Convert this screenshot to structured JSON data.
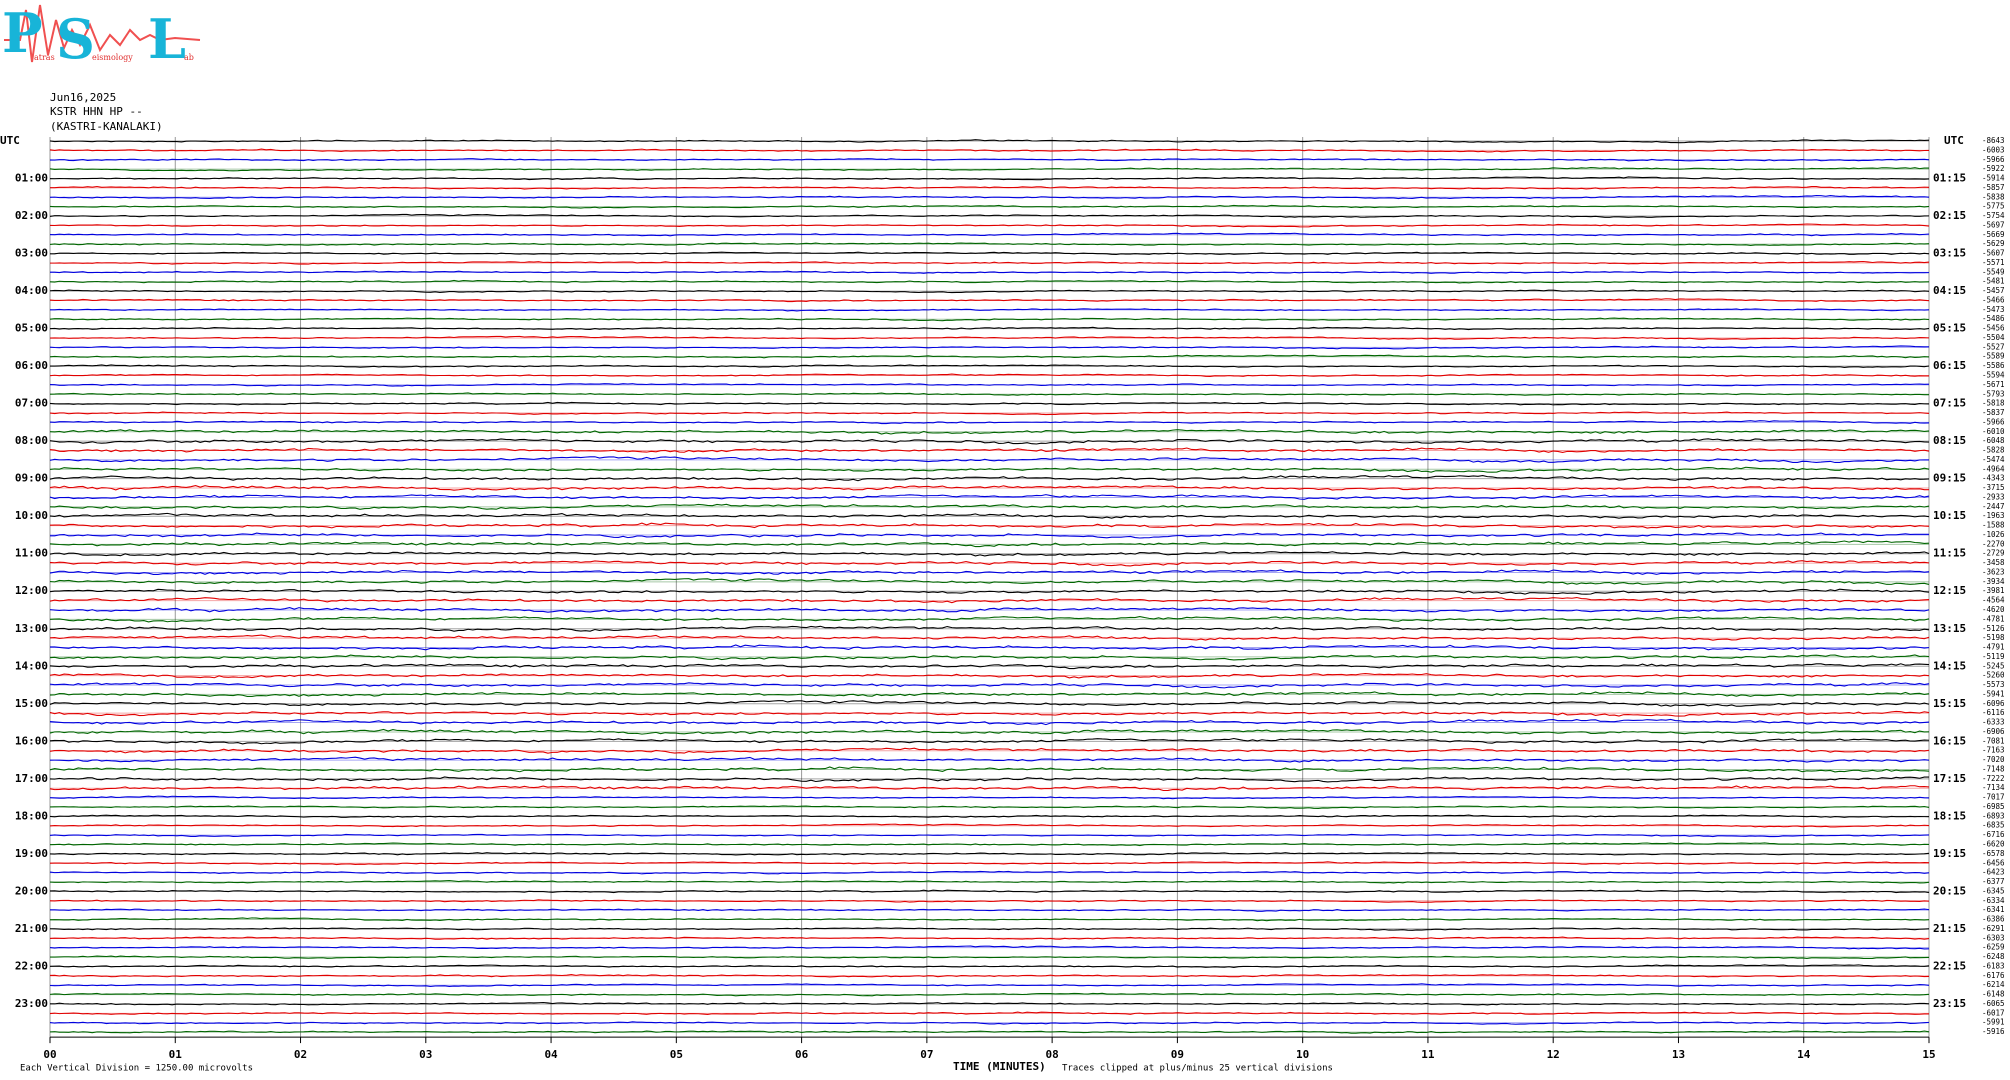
{
  "header": {
    "logo": {
      "letters": [
        "P",
        "S",
        "L"
      ],
      "words": [
        "atras",
        "eismology",
        "ab"
      ]
    },
    "date": "Jun16,2025",
    "station": "KSTR HHN HP --",
    "site": "(KASTRI-KANALAKI)"
  },
  "chart_data": {
    "type": "helicorder",
    "left_unit": "UTC",
    "right_unit": "UTC",
    "left_labels": [
      "01:00",
      "02:00",
      "03:00",
      "04:00",
      "05:00",
      "06:00",
      "07:00",
      "08:00",
      "09:00",
      "10:00",
      "11:00",
      "12:00",
      "13:00",
      "14:00",
      "15:00",
      "16:00",
      "17:00",
      "18:00",
      "19:00",
      "20:00",
      "21:00",
      "22:00",
      "23:00"
    ],
    "right_labels": [
      "01:15",
      "02:15",
      "03:15",
      "04:15",
      "05:15",
      "06:15",
      "07:15",
      "08:15",
      "09:15",
      "10:15",
      "11:15",
      "12:15",
      "13:15",
      "14:15",
      "15:15",
      "16:15",
      "17:15",
      "18:15",
      "19:15",
      "20:15",
      "21:15",
      "22:15",
      "23:15"
    ],
    "trace_offsets": [
      -8643,
      -6003,
      -5966,
      -5922,
      -5914,
      -5857,
      -5838,
      -5775,
      -5754,
      -5697,
      -5669,
      -5629,
      -5607,
      -5571,
      -5549,
      -5481,
      -5457,
      -5466,
      -5473,
      -5486,
      -5456,
      -5504,
      -5527,
      -5589,
      -5586,
      -5594,
      -5671,
      -5793,
      -5818,
      -5837,
      -5966,
      -6010,
      -6048,
      -5828,
      -5474,
      -4964,
      -4343,
      -3715,
      -2933,
      -2447,
      -1963,
      -1588,
      -1026,
      -2270,
      -2729,
      -3458,
      -3623,
      -3934,
      -3981,
      -4564,
      -4620,
      -4781,
      -5126,
      -5198,
      -4791,
      -5119,
      -5245,
      -5260,
      -5573,
      -5941,
      -6096,
      -6116,
      -6333,
      -6906,
      -7081,
      -7163,
      -7020,
      -7148,
      -7222,
      -7134,
      -7017,
      -6985,
      -6893,
      -6835,
      -6716,
      -6620,
      -6578,
      -6456,
      -6423,
      -6377,
      -6345,
      -6334,
      -6341,
      -6386,
      -6291,
      -6303,
      -6259,
      -6248,
      -6183,
      -6176,
      -6214,
      -6148,
      -6065,
      -6017,
      -5991,
      -5916
    ],
    "colors": [
      "#000000",
      "#e00000",
      "#0000dd",
      "#006400"
    ],
    "xlim": [
      0,
      15
    ],
    "xticks": [
      {
        "value": 0,
        "label": "00"
      },
      {
        "value": 1,
        "label": "01"
      },
      {
        "value": 2,
        "label": "02"
      },
      {
        "value": 3,
        "label": "03"
      },
      {
        "value": 4,
        "label": "04"
      },
      {
        "value": 5,
        "label": "05"
      },
      {
        "value": 6,
        "label": "06"
      },
      {
        "value": 7,
        "label": "07"
      },
      {
        "value": 8,
        "label": "08"
      },
      {
        "value": 9,
        "label": "09"
      },
      10,
      11,
      12,
      13,
      14,
      15
    ],
    "x_label": "TIME (MINUTES)",
    "scale_note": "Each Vertical Division = 1250.00 microvolts",
    "clip_note": "Traces clipped at plus/minus 25 vertical divisions"
  }
}
